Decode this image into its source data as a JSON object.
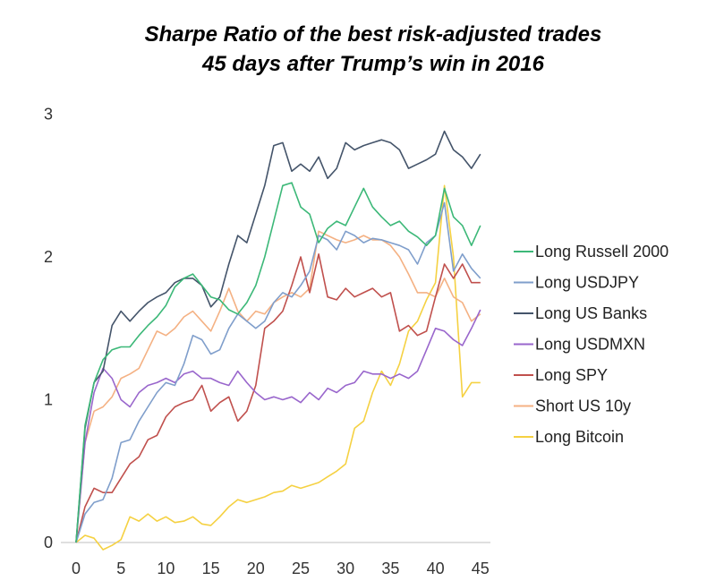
{
  "chart_data": {
    "type": "line",
    "title": "Sharpe Ratio of the best risk-adjusted trades",
    "subtitle": "45 days after Trump’s win in 2016",
    "xlabel": "",
    "ylabel": "",
    "xlim": [
      0,
      46
    ],
    "ylim": [
      0,
      3
    ],
    "xticks": [
      "0",
      "5",
      "10",
      "15",
      "20",
      "25",
      "30",
      "35",
      "40",
      "45"
    ],
    "xtick_values": [
      0,
      5,
      10,
      15,
      20,
      25,
      30,
      35,
      40,
      45
    ],
    "yticks": [
      "0",
      "1",
      "2",
      "3"
    ],
    "ytick_values": [
      0,
      1,
      2,
      3
    ],
    "grid": false,
    "legend_position": "right",
    "x": [
      0,
      1,
      2,
      3,
      4,
      5,
      6,
      7,
      8,
      9,
      10,
      11,
      12,
      13,
      14,
      15,
      16,
      17,
      18,
      19,
      20,
      21,
      22,
      23,
      24,
      25,
      26,
      27,
      28,
      29,
      30,
      31,
      32,
      33,
      34,
      35,
      36,
      37,
      38,
      39,
      40,
      41,
      42,
      43,
      44,
      45
    ],
    "series": [
      {
        "name": "Long Russell 2000",
        "color": "#3cb878",
        "values": [
          0,
          0.82,
          1.12,
          1.28,
          1.35,
          1.37,
          1.37,
          1.45,
          1.52,
          1.58,
          1.66,
          1.79,
          1.85,
          1.88,
          1.8,
          1.72,
          1.7,
          1.63,
          1.6,
          1.68,
          1.8,
          2.0,
          2.25,
          2.5,
          2.52,
          2.35,
          2.3,
          2.1,
          2.2,
          2.25,
          2.22,
          2.35,
          2.48,
          2.35,
          2.28,
          2.22,
          2.25,
          2.18,
          2.14,
          2.08,
          2.15,
          2.48,
          2.28,
          2.22,
          2.08,
          2.22
        ]
      },
      {
        "name": "Long USDJPY",
        "color": "#7f9ecb",
        "values": [
          0,
          0.2,
          0.28,
          0.3,
          0.45,
          0.7,
          0.72,
          0.85,
          0.95,
          1.05,
          1.12,
          1.1,
          1.25,
          1.45,
          1.42,
          1.32,
          1.35,
          1.5,
          1.6,
          1.55,
          1.5,
          1.55,
          1.68,
          1.75,
          1.72,
          1.8,
          1.9,
          2.15,
          2.12,
          2.05,
          2.18,
          2.15,
          2.1,
          2.13,
          2.12,
          2.1,
          2.08,
          2.05,
          1.95,
          2.1,
          2.15,
          2.38,
          1.9,
          2.02,
          1.92,
          1.85
        ]
      },
      {
        "name": "Long US Banks",
        "color": "#44546a",
        "values": [
          0,
          0.8,
          1.12,
          1.2,
          1.52,
          1.62,
          1.55,
          1.62,
          1.68,
          1.72,
          1.75,
          1.82,
          1.85,
          1.85,
          1.8,
          1.65,
          1.72,
          1.95,
          2.15,
          2.1,
          2.3,
          2.5,
          2.78,
          2.8,
          2.6,
          2.65,
          2.6,
          2.7,
          2.55,
          2.62,
          2.8,
          2.75,
          2.78,
          2.8,
          2.82,
          2.8,
          2.75,
          2.62,
          2.65,
          2.68,
          2.72,
          2.88,
          2.75,
          2.7,
          2.62,
          2.72
        ]
      },
      {
        "name": "Long USDMXN",
        "color": "#9966cc",
        "values": [
          0,
          0.7,
          1.05,
          1.22,
          1.15,
          1.0,
          0.95,
          1.05,
          1.1,
          1.12,
          1.15,
          1.12,
          1.18,
          1.2,
          1.15,
          1.15,
          1.12,
          1.1,
          1.2,
          1.12,
          1.05,
          1.0,
          1.02,
          1.0,
          1.02,
          0.98,
          1.05,
          1.0,
          1.08,
          1.05,
          1.1,
          1.12,
          1.2,
          1.18,
          1.18,
          1.15,
          1.18,
          1.15,
          1.2,
          1.35,
          1.5,
          1.48,
          1.42,
          1.38,
          1.5,
          1.63
        ]
      },
      {
        "name": "Long SPY",
        "color": "#c0504d",
        "values": [
          0,
          0.25,
          0.38,
          0.35,
          0.35,
          0.45,
          0.55,
          0.6,
          0.72,
          0.75,
          0.88,
          0.95,
          0.98,
          1.0,
          1.1,
          0.92,
          0.98,
          1.02,
          0.85,
          0.92,
          1.1,
          1.5,
          1.55,
          1.62,
          1.8,
          2.0,
          1.75,
          2.02,
          1.72,
          1.7,
          1.78,
          1.72,
          1.75,
          1.78,
          1.72,
          1.75,
          1.48,
          1.52,
          1.45,
          1.48,
          1.72,
          1.95,
          1.85,
          1.95,
          1.82,
          1.82
        ]
      },
      {
        "name": "Short US 10y",
        "color": "#f4b183",
        "values": [
          0,
          0.7,
          0.92,
          0.95,
          1.02,
          1.15,
          1.18,
          1.22,
          1.35,
          1.48,
          1.45,
          1.5,
          1.58,
          1.62,
          1.55,
          1.48,
          1.62,
          1.78,
          1.62,
          1.55,
          1.62,
          1.6,
          1.68,
          1.72,
          1.75,
          1.72,
          1.78,
          2.18,
          2.15,
          2.12,
          2.1,
          2.12,
          2.15,
          2.12,
          2.12,
          2.08,
          2.0,
          1.88,
          1.75,
          1.75,
          1.72,
          1.85,
          1.72,
          1.68,
          1.55,
          1.6
        ]
      },
      {
        "name": "Long Bitcoin",
        "color": "#f5d142",
        "values": [
          0,
          0.05,
          0.03,
          -0.05,
          -0.02,
          0.02,
          0.18,
          0.15,
          0.2,
          0.15,
          0.18,
          0.14,
          0.15,
          0.18,
          0.13,
          0.12,
          0.18,
          0.25,
          0.3,
          0.28,
          0.3,
          0.32,
          0.35,
          0.36,
          0.4,
          0.38,
          0.4,
          0.42,
          0.46,
          0.5,
          0.55,
          0.8,
          0.85,
          1.05,
          1.2,
          1.1,
          1.25,
          1.48,
          1.55,
          1.7,
          1.82,
          2.5,
          2.0,
          1.02,
          1.12,
          1.12
        ]
      }
    ]
  }
}
